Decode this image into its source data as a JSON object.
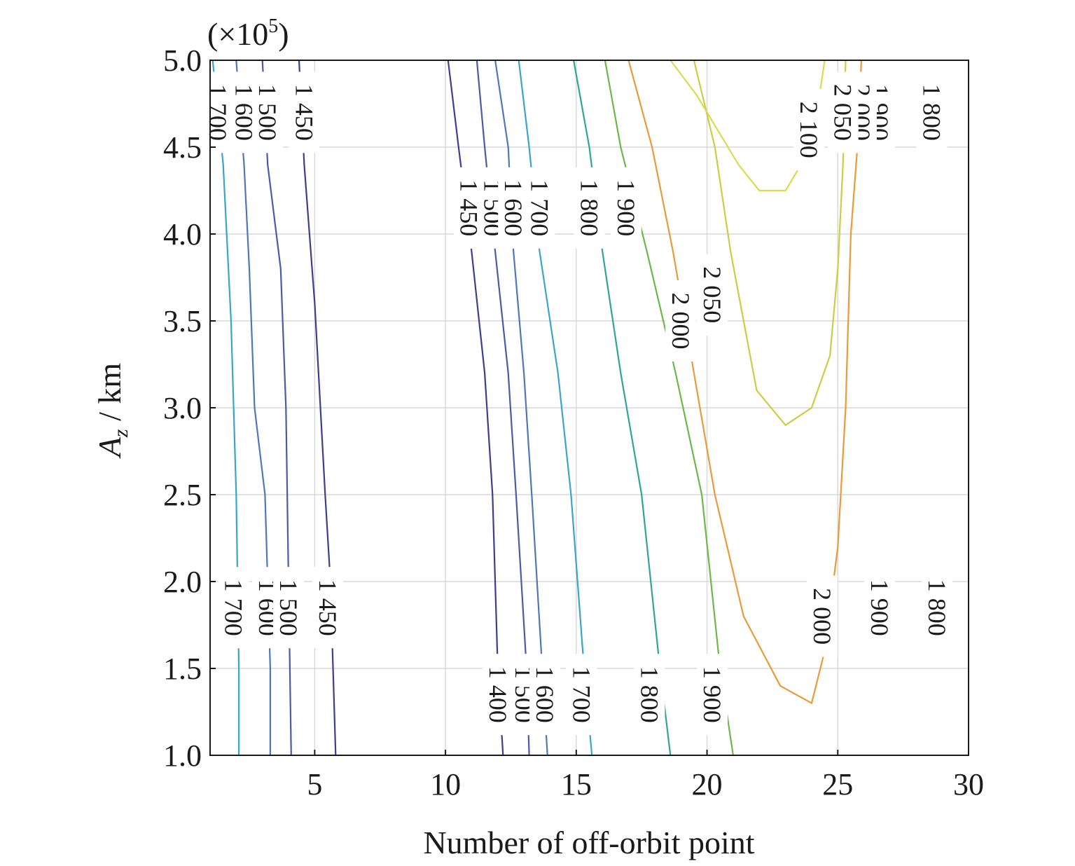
{
  "chart_data": {
    "type": "contour",
    "xlabel": "Number of off-orbit point",
    "ylabel_main": "A",
    "ylabel_sub": "z",
    "ylabel_unit": " / km",
    "y_multiplier": "(×10",
    "y_multiplier_exp": "5",
    "y_multiplier_close": ")",
    "xlim": [
      1,
      30
    ],
    "ylim": [
      1.0,
      5.0
    ],
    "x_ticks": [
      5,
      10,
      15,
      20,
      25,
      30
    ],
    "x_tick_labels": [
      "5",
      "10",
      "15",
      "20",
      "25",
      "30"
    ],
    "y_ticks": [
      1.0,
      1.5,
      2.0,
      2.5,
      3.0,
      3.5,
      4.0,
      4.5,
      5.0
    ],
    "y_tick_labels": [
      "1.0",
      "1.5",
      "2.0",
      "2.5",
      "3.0",
      "3.5",
      "4.0",
      "4.5",
      "5.0"
    ],
    "grid": true,
    "contours": [
      {
        "level": 1700,
        "label": "1 700",
        "color": "#3aa6c7",
        "points": [
          [
            1.1,
            5.0
          ],
          [
            1.5,
            4.4
          ],
          [
            1.8,
            3.5
          ],
          [
            2.0,
            2.5
          ],
          [
            2.1,
            1.5
          ],
          [
            2.1,
            1.0
          ]
        ],
        "labels_at": [
          [
            1.3,
            4.7
          ],
          [
            1.9,
            1.85
          ]
        ]
      },
      {
        "level": 1600,
        "label": "1 600",
        "color": "#5077b9",
        "points": [
          [
            2.0,
            5.0
          ],
          [
            2.3,
            4.4
          ],
          [
            2.5,
            3.8
          ],
          [
            2.7,
            3.0
          ],
          [
            3.1,
            2.5
          ],
          [
            3.2,
            2.0
          ],
          [
            3.3,
            1.5
          ],
          [
            3.3,
            1.0
          ]
        ],
        "labels_at": [
          [
            2.3,
            4.7
          ],
          [
            3.2,
            1.85
          ]
        ]
      },
      {
        "level": 1500,
        "label": "1 500",
        "color": "#4a5ba8",
        "points": [
          [
            3.0,
            5.0
          ],
          [
            3.2,
            4.4
          ],
          [
            3.7,
            3.8
          ],
          [
            3.9,
            3.0
          ],
          [
            4.0,
            2.0
          ],
          [
            4.1,
            1.0
          ]
        ],
        "labels_at": [
          [
            3.2,
            4.7
          ],
          [
            4.0,
            1.85
          ]
        ]
      },
      {
        "level": 1450,
        "label": "1 450",
        "color": "#3b3f8e",
        "points": [
          [
            4.4,
            5.0
          ],
          [
            4.6,
            4.4
          ],
          [
            5.0,
            3.6
          ],
          [
            5.4,
            2.5
          ],
          [
            5.6,
            2.0
          ],
          [
            5.8,
            1.0
          ]
        ],
        "labels_at": [
          [
            4.6,
            4.7
          ],
          [
            5.5,
            1.85
          ]
        ]
      },
      {
        "level": 1450,
        "label": "1 450",
        "color": "#3b3f8e",
        "points": [
          [
            10.1,
            5.0
          ],
          [
            10.5,
            4.5
          ],
          [
            11.0,
            3.9
          ],
          [
            11.5,
            3.2
          ],
          [
            11.8,
            2.5
          ],
          [
            12.0,
            1.5
          ],
          [
            12.2,
            1.0
          ]
        ],
        "labels_at": [
          [
            10.9,
            4.15
          ]
        ]
      },
      {
        "level": 1400,
        "label": "1 400",
        "color": "#3b3f8e",
        "points": [],
        "labels_at": [
          [
            12.0,
            1.35
          ]
        ]
      },
      {
        "level": 1500,
        "label": "1 500",
        "color": "#4a5ba8",
        "points": [
          [
            11.2,
            5.0
          ],
          [
            11.5,
            4.5
          ],
          [
            11.9,
            3.9
          ],
          [
            12.4,
            3.2
          ],
          [
            12.7,
            2.5
          ],
          [
            13.1,
            1.5
          ],
          [
            13.2,
            1.0
          ]
        ],
        "labels_at": [
          [
            11.8,
            4.15
          ],
          [
            13.0,
            1.35
          ]
        ]
      },
      {
        "level": 1600,
        "label": "1 600",
        "color": "#5077b9",
        "points": [
          [
            11.9,
            5.0
          ],
          [
            12.4,
            4.5
          ],
          [
            12.6,
            3.9
          ],
          [
            13.0,
            3.2
          ],
          [
            13.3,
            2.5
          ],
          [
            13.7,
            1.5
          ],
          [
            13.9,
            1.0
          ]
        ],
        "labels_at": [
          [
            12.6,
            4.15
          ],
          [
            13.8,
            1.35
          ]
        ]
      },
      {
        "level": 1700,
        "label": "1 700",
        "color": "#3aa6c7",
        "points": [
          [
            12.8,
            5.0
          ],
          [
            13.2,
            4.5
          ],
          [
            13.6,
            3.9
          ],
          [
            14.3,
            3.2
          ],
          [
            14.8,
            2.5
          ],
          [
            15.3,
            1.5
          ],
          [
            15.6,
            1.0
          ]
        ],
        "labels_at": [
          [
            13.6,
            4.15
          ],
          [
            15.2,
            1.35
          ]
        ]
      },
      {
        "level": 1800,
        "label": "1 800",
        "color": "#2fa59a",
        "points": [
          [
            14.9,
            5.0
          ],
          [
            15.5,
            4.5
          ],
          [
            16.0,
            3.9
          ],
          [
            16.7,
            3.2
          ],
          [
            17.5,
            2.5
          ],
          [
            18.2,
            1.5
          ],
          [
            18.6,
            1.0
          ]
        ],
        "labels_at": [
          [
            15.5,
            4.15
          ],
          [
            17.8,
            1.35
          ],
          [
            28.6,
            4.7
          ],
          [
            28.8,
            1.85
          ]
        ]
      },
      {
        "level": 1900,
        "label": "1 900",
        "color": "#6cb84a",
        "points": [
          [
            16.1,
            5.0
          ],
          [
            16.7,
            4.5
          ],
          [
            17.7,
            3.9
          ],
          [
            18.8,
            3.2
          ],
          [
            19.8,
            2.5
          ],
          [
            20.5,
            1.5
          ],
          [
            21.0,
            1.0
          ]
        ],
        "labels_at": [
          [
            16.9,
            4.15
          ],
          [
            20.2,
            1.35
          ],
          [
            26.6,
            4.7
          ],
          [
            26.6,
            1.85
          ]
        ]
      },
      {
        "level": 2000,
        "label": "2 000",
        "color": "#e99a3a",
        "points": [
          [
            17.0,
            5.0
          ],
          [
            17.9,
            4.5
          ],
          [
            18.7,
            3.9
          ],
          [
            19.5,
            3.2
          ],
          [
            20.3,
            2.5
          ],
          [
            21.4,
            1.8
          ],
          [
            22.8,
            1.4
          ],
          [
            24.0,
            1.3
          ],
          [
            24.5,
            1.6
          ],
          [
            25.0,
            2.2
          ],
          [
            25.3,
            3.0
          ],
          [
            25.5,
            4.0
          ],
          [
            25.8,
            4.6
          ],
          [
            25.9,
            5.0
          ]
        ],
        "labels_at": [
          [
            19.0,
            3.5
          ],
          [
            24.4,
            1.8
          ],
          [
            25.9,
            4.7
          ]
        ]
      },
      {
        "level": 2050,
        "label": "2 050",
        "color": "#cccc45",
        "points": [
          [
            19.5,
            5.0
          ],
          [
            20.3,
            4.5
          ],
          [
            20.9,
            3.9
          ],
          [
            21.4,
            3.5
          ],
          [
            21.9,
            3.1
          ],
          [
            23.0,
            2.9
          ],
          [
            24.0,
            3.0
          ],
          [
            24.7,
            3.3
          ],
          [
            25.0,
            3.8
          ],
          [
            25.2,
            4.4
          ],
          [
            25.3,
            5.0
          ]
        ],
        "labels_at": [
          [
            20.2,
            3.65
          ],
          [
            25.2,
            4.7
          ]
        ]
      },
      {
        "level": 2100,
        "label": "2 100",
        "color": "#d9dc50",
        "points": [
          [
            18.6,
            5.0
          ],
          [
            19.6,
            4.8
          ],
          [
            21.2,
            4.4
          ],
          [
            22.0,
            4.25
          ],
          [
            23.0,
            4.25
          ],
          [
            24.0,
            4.5
          ],
          [
            24.5,
            5.0
          ]
        ],
        "labels_at": [
          [
            23.9,
            4.6
          ]
        ]
      }
    ]
  }
}
